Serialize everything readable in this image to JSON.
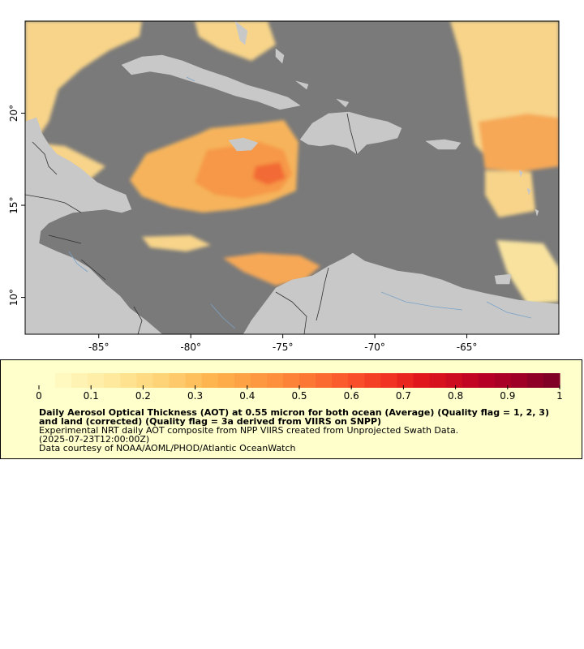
{
  "map": {
    "lat_range": [
      8,
      25
    ],
    "lon_range": [
      -89,
      -60
    ],
    "lon_ticks": [
      {
        "value": -85,
        "label": "-85°"
      },
      {
        "value": -80,
        "label": "-80°"
      },
      {
        "value": -75,
        "label": "-75°"
      },
      {
        "value": -70,
        "label": "-70°"
      },
      {
        "value": -65,
        "label": "-65°"
      }
    ],
    "lat_ticks": [
      {
        "value": 20,
        "label": "20°"
      },
      {
        "value": 15,
        "label": "15°"
      },
      {
        "value": 10,
        "label": "10°"
      }
    ],
    "colors": {
      "no_data": "#7a7a7a",
      "land": "#c8c8c8",
      "borders": "#222222",
      "rivers": "#7aa3c8"
    }
  },
  "legend": {
    "scale_min": 0,
    "scale_max": 1,
    "tick_labels": [
      "0",
      "0.1",
      "0.2",
      "0.3",
      "0.4",
      "0.5",
      "0.6",
      "0.7",
      "0.8",
      "0.9",
      "1"
    ],
    "title": "Daily Aerosol Optical Thickness (AOT) at 0.55 micron for both ocean (Average) (Quality flag = 1, 2, 3) and land (corrected) (Quality flag = 3a derived from VIIRS on SNPP)",
    "description": "Experimental NRT daily AOT composite from NPP VIIRS created from Unprojected Swath Data.",
    "timestamp": "(2025-07-23T12:00:00Z)",
    "credit": "Data courtesy of NOAA/AOML/PHOD/Atlantic OceanWatch",
    "colormap": [
      "#ffffcc",
      "#fff3b3",
      "#fee89a",
      "#fed980",
      "#fec767",
      "#feb24c",
      "#fd9e43",
      "#fd8a3b",
      "#fc7032",
      "#f9542b",
      "#f23824",
      "#e31a1c",
      "#cf0c20",
      "#b80026",
      "#a00026",
      "#800026"
    ]
  }
}
